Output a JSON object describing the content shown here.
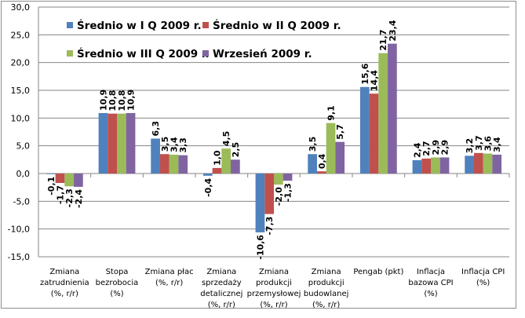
{
  "chart_data": {
    "type": "bar",
    "categories": [
      [
        "Zmiana",
        "zatrudnienia",
        "(%, r/r)"
      ],
      [
        "Stopa",
        "bezrobocia",
        "(%)"
      ],
      [
        "Zmiana płac",
        "(%, r/r)"
      ],
      [
        "Zmiana",
        "sprzedaży",
        "detalicznej",
        "(%, r/r)"
      ],
      [
        "Zmiana",
        "produkcji",
        "przemysłowej",
        "(%, r/r)"
      ],
      [
        "Zmiana",
        "produkcji",
        "budowlanej",
        "(%, r/r)"
      ],
      [
        "Pengab (pkt)"
      ],
      [
        "Inflacja",
        "bazowa CPI",
        "(%)"
      ],
      [
        "Inflacja CPI",
        "(%)"
      ]
    ],
    "series": [
      {
        "name": "Średnio w I Q 2009 r.",
        "color": "#4F81BD",
        "values": [
          -0.1,
          10.9,
          6.3,
          -0.4,
          -10.6,
          3.5,
          15.6,
          2.4,
          3.2
        ]
      },
      {
        "name": "Średnio w II Q 2009 r.",
        "color": "#C0504D",
        "values": [
          -1.7,
          10.8,
          3.5,
          1.0,
          -7.3,
          0.4,
          14.4,
          2.7,
          3.7
        ]
      },
      {
        "name": "Średnio w III Q 2009 r.",
        "color": "#9BBB59",
        "values": [
          -2.3,
          10.8,
          3.4,
          4.5,
          -2.0,
          9.1,
          21.7,
          2.9,
          3.6
        ]
      },
      {
        "name": "Wrzesień 2009 r.",
        "color": "#8064A2",
        "values": [
          -2.4,
          10.9,
          3.3,
          2.5,
          -1.3,
          5.7,
          23.4,
          2.9,
          3.4
        ]
      }
    ],
    "ylim": [
      -15,
      30
    ],
    "yticks": [
      "-15,0",
      "-10,0",
      "-5,0",
      "0,0",
      "5,0",
      "10,0",
      "15,0",
      "20,0",
      "25,0",
      "30,0"
    ],
    "ytick_values": [
      -15,
      -10,
      -5,
      0,
      5,
      10,
      15,
      20,
      25,
      30
    ],
    "grid": true,
    "legend": "top-left",
    "data_labels": true,
    "decimal_separator": ","
  }
}
